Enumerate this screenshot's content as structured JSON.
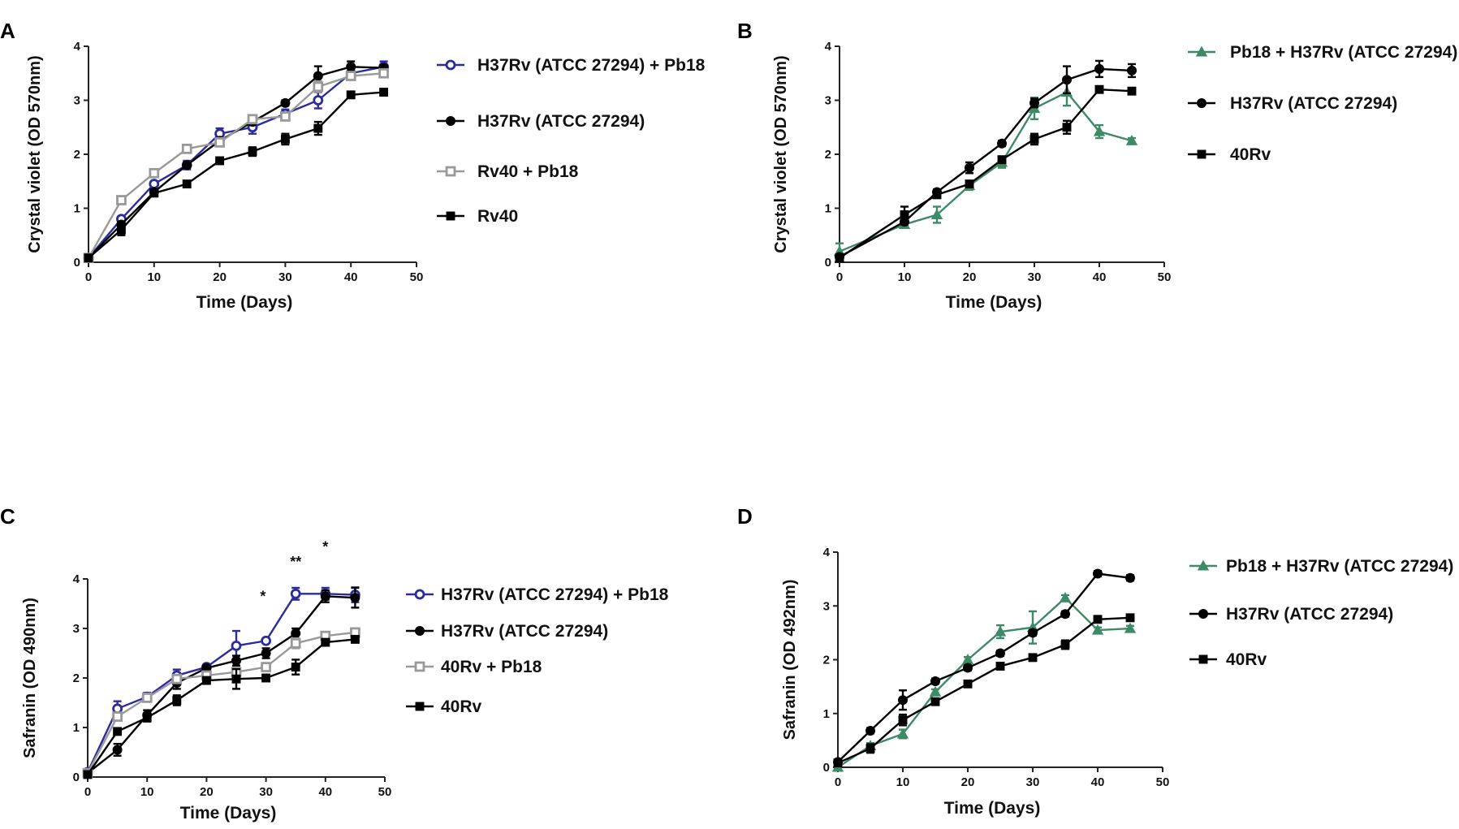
{
  "chart_data": [
    {
      "id": "A",
      "type": "line",
      "panel_label": "A",
      "title": "",
      "xlabel": "Time (Days)",
      "ylabel": "Crystal violet  (OD 570nm)",
      "xlim": [
        0,
        50
      ],
      "ylim": [
        0,
        4
      ],
      "xticks": [
        0,
        10,
        20,
        30,
        40,
        50
      ],
      "yticks": [
        0,
        1,
        2,
        3,
        4
      ],
      "legend_position": "right",
      "series": [
        {
          "name": "H37Rv (ATCC 27294) + Pb18",
          "color": "#2b2b9c",
          "marker": "circle-open",
          "x": [
            0,
            5,
            10,
            15,
            20,
            25,
            30,
            35,
            40,
            45
          ],
          "y": [
            0.08,
            0.8,
            1.45,
            1.8,
            2.38,
            2.5,
            2.75,
            3.0,
            3.5,
            3.62
          ],
          "err": [
            0.03,
            0.05,
            0.05,
            0.08,
            0.1,
            0.12,
            0.08,
            0.15,
            0.1,
            0.1
          ]
        },
        {
          "name": "H37Rv (ATCC 27294)",
          "color": "#000000",
          "marker": "circle",
          "x": [
            0,
            5,
            10,
            15,
            20,
            25,
            30,
            35,
            40,
            45
          ],
          "y": [
            0.08,
            0.7,
            1.3,
            1.8,
            2.25,
            2.6,
            2.95,
            3.45,
            3.62,
            3.6
          ],
          "err": [
            0.03,
            0.05,
            0.05,
            0.05,
            0.05,
            0.05,
            0.05,
            0.18,
            0.1,
            0.05
          ]
        },
        {
          "name": "Rv40 + Pb18",
          "color": "#999999",
          "marker": "square-open",
          "x": [
            0,
            5,
            10,
            15,
            20,
            25,
            30,
            35,
            40,
            45
          ],
          "y": [
            0.08,
            1.15,
            1.65,
            2.1,
            2.22,
            2.65,
            2.7,
            3.25,
            3.45,
            3.5
          ],
          "err": [
            0.03,
            0.05,
            0.05,
            0.05,
            0.05,
            0.05,
            0.05,
            0.1,
            0.05,
            0.05
          ]
        },
        {
          "name": "Rv40",
          "color": "#000000",
          "marker": "square",
          "x": [
            0,
            5,
            10,
            15,
            20,
            25,
            30,
            35,
            40,
            45
          ],
          "y": [
            0.08,
            0.6,
            1.28,
            1.45,
            1.88,
            2.05,
            2.28,
            2.48,
            3.1,
            3.15
          ],
          "err": [
            0.03,
            0.1,
            0.05,
            0.05,
            0.05,
            0.08,
            0.1,
            0.12,
            0.05,
            0.05
          ]
        }
      ]
    },
    {
      "id": "B",
      "type": "line",
      "panel_label": "B",
      "title": "",
      "xlabel": "Time (Days)",
      "ylabel": "Crystal violet  (OD 570nm)",
      "xlim": [
        0,
        50
      ],
      "ylim": [
        0,
        4
      ],
      "xticks": [
        0,
        10,
        20,
        30,
        40,
        50
      ],
      "yticks": [
        0,
        1,
        2,
        3,
        4
      ],
      "legend_position": "right",
      "series": [
        {
          "name": "Pb18 +  H37Rv (ATCC 27294)",
          "color": "#3d8a66",
          "marker": "triangle",
          "x": [
            0,
            10,
            15,
            20,
            25,
            30,
            35,
            40,
            45
          ],
          "y": [
            0.2,
            0.7,
            0.88,
            1.42,
            1.85,
            2.85,
            3.15,
            2.42,
            2.25
          ],
          "err": [
            0.15,
            0.05,
            0.15,
            0.08,
            0.1,
            0.2,
            0.25,
            0.12,
            0.05
          ]
        },
        {
          "name": "H37Rv (ATCC 27294)",
          "color": "#000000",
          "marker": "circle",
          "x": [
            0,
            10,
            15,
            20,
            25,
            30,
            35,
            40,
            45
          ],
          "y": [
            0.1,
            0.75,
            1.3,
            1.75,
            2.2,
            2.95,
            3.38,
            3.58,
            3.55
          ],
          "err": [
            0.03,
            0.05,
            0.05,
            0.1,
            0.05,
            0.08,
            0.25,
            0.15,
            0.12
          ]
        },
        {
          "name": "40Rv",
          "color": "#000000",
          "marker": "square",
          "x": [
            0,
            10,
            15,
            20,
            25,
            30,
            35,
            40,
            45
          ],
          "y": [
            0.08,
            0.88,
            1.25,
            1.45,
            1.9,
            2.28,
            2.5,
            3.2,
            3.17
          ],
          "err": [
            0.03,
            0.15,
            0.05,
            0.05,
            0.05,
            0.1,
            0.12,
            0.05,
            0.05
          ]
        }
      ]
    },
    {
      "id": "C",
      "type": "line",
      "panel_label": "C",
      "title": "",
      "xlabel": "Time (Days)",
      "ylabel": "Safranin (OD 490nm)",
      "xlim": [
        0,
        50
      ],
      "ylim": [
        0,
        4
      ],
      "xticks": [
        0,
        10,
        20,
        30,
        40,
        50
      ],
      "yticks": [
        0,
        1,
        2,
        3,
        4
      ],
      "legend_position": "right",
      "annotations": [
        {
          "text": "*",
          "x": 29.5,
          "y": 3.55
        },
        {
          "text": "**",
          "x": 35,
          "y": 4.25
        },
        {
          "text": "*",
          "x": 40,
          "y": 4.55
        }
      ],
      "series": [
        {
          "name": "H37Rv (ATCC 27294) + Pb18",
          "color": "#2b2b9c",
          "marker": "circle-open",
          "x": [
            0,
            5,
            10,
            15,
            20,
            25,
            30,
            35,
            40,
            45
          ],
          "y": [
            0.1,
            1.38,
            1.62,
            2.05,
            2.22,
            2.65,
            2.75,
            3.7,
            3.7,
            3.68
          ],
          "err": [
            0.05,
            0.15,
            0.08,
            0.12,
            0.05,
            0.3,
            0.05,
            0.12,
            0.12,
            0.15
          ]
        },
        {
          "name": "H37Rv (ATCC 27294)",
          "color": "#000000",
          "marker": "circle",
          "x": [
            0,
            5,
            10,
            15,
            20,
            25,
            30,
            35,
            40,
            45
          ],
          "y": [
            0.08,
            0.55,
            1.25,
            1.9,
            2.2,
            2.35,
            2.5,
            2.9,
            3.65,
            3.62
          ],
          "err": [
            0.03,
            0.12,
            0.1,
            0.12,
            0.05,
            0.1,
            0.1,
            0.1,
            0.12,
            0.2
          ]
        },
        {
          "name": "40Rv + Pb18",
          "color": "#999999",
          "marker": "square-open",
          "x": [
            0,
            5,
            10,
            15,
            20,
            25,
            30,
            35,
            40,
            45
          ],
          "y": [
            0.08,
            1.22,
            1.6,
            1.98,
            2.05,
            2.12,
            2.22,
            2.7,
            2.85,
            2.92
          ],
          "err": [
            0.03,
            0.08,
            0.05,
            0.05,
            0.05,
            0.05,
            0.05,
            0.1,
            0.05,
            0.05
          ]
        },
        {
          "name": "40Rv",
          "color": "#000000",
          "marker": "square",
          "x": [
            0,
            5,
            10,
            15,
            20,
            25,
            30,
            35,
            40,
            45
          ],
          "y": [
            0.05,
            0.92,
            1.2,
            1.55,
            1.95,
            1.98,
            2.0,
            2.22,
            2.72,
            2.78
          ],
          "err": [
            0.03,
            0.05,
            0.08,
            0.1,
            0.05,
            0.2,
            0.05,
            0.15,
            0.05,
            0.05
          ]
        }
      ]
    },
    {
      "id": "D",
      "type": "line",
      "panel_label": "D",
      "title": "",
      "xlabel": "Time (Days)",
      "ylabel": "Safranin (OD 492nm)",
      "xlim": [
        0,
        50
      ],
      "ylim": [
        0,
        4
      ],
      "xticks": [
        0,
        10,
        20,
        30,
        40,
        50
      ],
      "yticks": [
        0,
        1,
        2,
        3,
        4
      ],
      "legend_position": "right",
      "series": [
        {
          "name": "Pb18 + H37Rv (ATCC 27294)",
          "color": "#3d8a66",
          "marker": "triangle",
          "x": [
            0,
            5,
            10,
            15,
            20,
            25,
            30,
            35,
            40,
            45
          ],
          "y": [
            0.0,
            0.4,
            0.62,
            1.4,
            2.0,
            2.52,
            2.6,
            3.15,
            2.55,
            2.58
          ],
          "err": [
            0.03,
            0.05,
            0.08,
            0.05,
            0.05,
            0.12,
            0.3,
            0.05,
            0.05,
            0.05
          ]
        },
        {
          "name": "H37Rv (ATCC 27294)",
          "color": "#000000",
          "marker": "circle",
          "x": [
            0,
            5,
            10,
            15,
            20,
            25,
            30,
            35,
            40,
            45
          ],
          "y": [
            0.1,
            0.68,
            1.25,
            1.6,
            1.85,
            2.12,
            2.5,
            2.85,
            3.6,
            3.52
          ],
          "err": [
            0.03,
            0.05,
            0.18,
            0.05,
            0.05,
            0.05,
            0.05,
            0.05,
            0.05,
            0.05
          ]
        },
        {
          "name": "40Rv",
          "color": "#000000",
          "marker": "square",
          "x": [
            0,
            5,
            10,
            15,
            20,
            25,
            30,
            35,
            40,
            45
          ],
          "y": [
            0.08,
            0.35,
            0.88,
            1.22,
            1.55,
            1.88,
            2.04,
            2.28,
            2.75,
            2.78
          ],
          "err": [
            0.03,
            0.08,
            0.1,
            0.05,
            0.05,
            0.05,
            0.05,
            0.08,
            0.05,
            0.05
          ]
        }
      ]
    }
  ]
}
